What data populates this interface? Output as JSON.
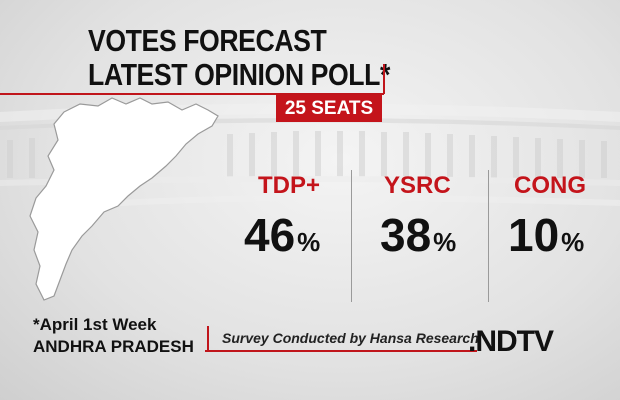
{
  "header": {
    "line1": "VOTES FORECAST",
    "line2": "LATEST OPINION POLL*",
    "seats_badge": "25 SEATS"
  },
  "chart_data": {
    "type": "table",
    "categories": [
      "TDP+",
      "YSRC",
      "CONG"
    ],
    "values": [
      46,
      38,
      10
    ],
    "unit": "%"
  },
  "labels": {
    "party_tdp": "TDP+",
    "party_ysrc": "YSRC",
    "party_cong": "CONG",
    "pct_tdp": "46",
    "pct_ysrc": "38",
    "pct_cong": "10",
    "percent_sign": "%"
  },
  "footer": {
    "note": "*April 1st Week",
    "state": "ANDHRA PRADESH",
    "source": "Survey Conducted by Hansa Research",
    "brand": ".NDTV"
  },
  "colors": {
    "accent": "#c4141b",
    "text": "#111111"
  }
}
